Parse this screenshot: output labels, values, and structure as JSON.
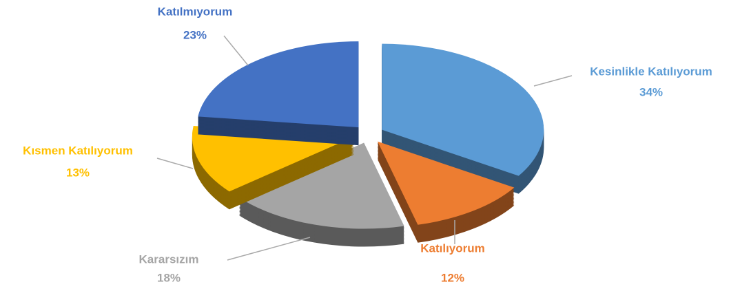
{
  "chart_data": {
    "type": "pie",
    "categories": [
      "Kesinlikle Katılıyorum",
      "Katılıyorum",
      "Kararsızım",
      "Kısmen Katılıyorum",
      "Katılmıyorum"
    ],
    "values": [
      34,
      12,
      18,
      13,
      23
    ],
    "value_labels": [
      "34%",
      "12%",
      "18%",
      "13%",
      "23%"
    ],
    "colors": [
      "#5b9bd5",
      "#ed7d31",
      "#a5a5a5",
      "#ffc000",
      "#4472c4"
    ]
  }
}
